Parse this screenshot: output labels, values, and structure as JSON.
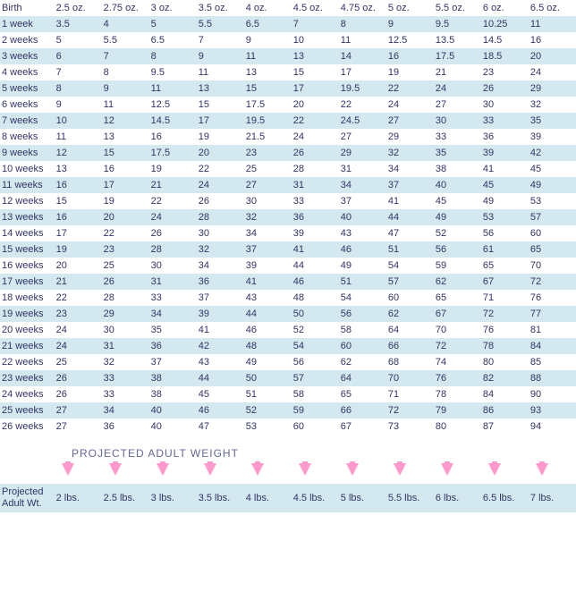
{
  "header": [
    "Birth",
    "2.5 oz.",
    "2.75 oz.",
    "3 oz.",
    "3.5 oz.",
    "4 oz.",
    "4.5 oz.",
    "4.75 oz.",
    "5 oz.",
    "5.5 oz.",
    "6 oz.",
    "6.5 oz."
  ],
  "rows": [
    [
      "1 week",
      "3.5",
      "4",
      "5",
      "5.5",
      "6.5",
      "7",
      "8",
      "9",
      "9.5",
      "10.25",
      "11"
    ],
    [
      "2 weeks",
      "5",
      "5.5",
      "6.5",
      "7",
      "9",
      "10",
      "11",
      "12.5",
      "13.5",
      "14.5",
      "16"
    ],
    [
      "3 weeks",
      "6",
      "7",
      "8",
      "9",
      "11",
      "13",
      "14",
      "16",
      "17.5",
      "18.5",
      "20"
    ],
    [
      "4 weeks",
      "7",
      "8",
      "9.5",
      "11",
      "13",
      "15",
      "17",
      "19",
      "21",
      "23",
      "24"
    ],
    [
      "5 weeks",
      "8",
      "9",
      "11",
      "13",
      "15",
      "17",
      "19.5",
      "22",
      "24",
      "26",
      "29"
    ],
    [
      "6 weeks",
      "9",
      "11",
      "12.5",
      "15",
      "17.5",
      "20",
      "22",
      "24",
      "27",
      "30",
      "32"
    ],
    [
      "7 weeks",
      "10",
      "12",
      "14.5",
      "17",
      "19.5",
      "22",
      "24.5",
      "27",
      "30",
      "33",
      "35"
    ],
    [
      "8 weeks",
      "11",
      "13",
      "16",
      "19",
      "21.5",
      "24",
      "27",
      "29",
      "33",
      "36",
      "39"
    ],
    [
      "9 weeks",
      "12",
      "15",
      "17.5",
      "20",
      "23",
      "26",
      "29",
      "32",
      "35",
      "39",
      "42"
    ],
    [
      "10 weeks",
      "13",
      "16",
      "19",
      "22",
      "25",
      "28",
      "31",
      "34",
      "38",
      "41",
      "45"
    ],
    [
      "11 weeks",
      "16",
      "17",
      "21",
      "24",
      "27",
      "31",
      "34",
      "37",
      "40",
      "45",
      "49"
    ],
    [
      "12 weeks",
      "15",
      "19",
      "22",
      "26",
      "30",
      "33",
      "37",
      "41",
      "45",
      "49",
      "53"
    ],
    [
      "13 weeks",
      "16",
      "20",
      "24",
      "28",
      "32",
      "36",
      "40",
      "44",
      "49",
      "53",
      "57"
    ],
    [
      "14 weeks",
      "17",
      "22",
      "26",
      "30",
      "34",
      "39",
      "43",
      "47",
      "52",
      "56",
      "60"
    ],
    [
      "15 weeks",
      "19",
      "23",
      "28",
      "32",
      "37",
      "41",
      "46",
      "51",
      "56",
      "61",
      "65"
    ],
    [
      "16 weeks",
      "20",
      "25",
      "30",
      "34",
      "39",
      "44",
      "49",
      "54",
      "59",
      "65",
      "70"
    ],
    [
      "17 weeks",
      "21",
      "26",
      "31",
      "36",
      "41",
      "46",
      "51",
      "57",
      "62",
      "67",
      "72"
    ],
    [
      "18 weeks",
      "22",
      "28",
      "33",
      "37",
      "43",
      "48",
      "54",
      "60",
      "65",
      "71",
      "76"
    ],
    [
      "19 weeks",
      "23",
      "29",
      "34",
      "39",
      "44",
      "50",
      "56",
      "62",
      "67",
      "72",
      "77"
    ],
    [
      "20 weeks",
      "24",
      "30",
      "35",
      "41",
      "46",
      "52",
      "58",
      "64",
      "70",
      "76",
      "81"
    ],
    [
      "21 weeks",
      "24",
      "31",
      "36",
      "42",
      "48",
      "54",
      "60",
      "66",
      "72",
      "78",
      "84"
    ],
    [
      "22 weeks",
      "25",
      "32",
      "37",
      "43",
      "49",
      "56",
      "62",
      "68",
      "74",
      "80",
      "85"
    ],
    [
      "23 weeks",
      "26",
      "33",
      "38",
      "44",
      "50",
      "57",
      "64",
      "70",
      "76",
      "82",
      "88"
    ],
    [
      "24 weeks",
      "26",
      "33",
      "38",
      "45",
      "51",
      "58",
      "65",
      "71",
      "78",
      "84",
      "90"
    ],
    [
      "25 weeks",
      "27",
      "34",
      "40",
      "46",
      "52",
      "59",
      "66",
      "72",
      "79",
      "86",
      "93"
    ],
    [
      "26 weeks",
      "27",
      "36",
      "40",
      "47",
      "53",
      "60",
      "67",
      "73",
      "80",
      "87",
      "94"
    ]
  ],
  "projected_title": "PROJECTED ADULT WEIGHT",
  "projected_label": "Projected Adult Wt.",
  "projected": [
    "2 lbs.",
    "2.5 lbs.",
    "3 lbs.",
    "3.5 lbs.",
    "4 lbs.",
    "4.5 lbs.",
    "5 lbs.",
    "5.5 lbs.",
    "6 lbs.",
    "6.5 lbs.",
    "7 lbs."
  ]
}
